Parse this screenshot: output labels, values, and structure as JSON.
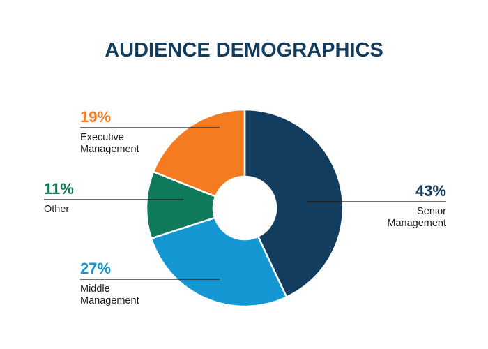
{
  "chart_data": {
    "type": "pie",
    "title": "AUDIENCE DEMOGRAPHICS",
    "donut": true,
    "slices": [
      {
        "label_lines": [
          "Senior",
          "Management"
        ],
        "value": 43,
        "display": "43%",
        "color": "#123d5e"
      },
      {
        "label_lines": [
          "Middle",
          "Management"
        ],
        "value": 27,
        "display": "27%",
        "color": "#1597d3"
      },
      {
        "label_lines": [
          "Other"
        ],
        "value": 11,
        "display": "11%",
        "color": "#0f7a5c"
      },
      {
        "label_lines": [
          "Executive",
          "Management"
        ],
        "value": 19,
        "display": "19%",
        "color": "#f47b20"
      }
    ]
  },
  "colors": {
    "title": "#123d5e",
    "leader_line": "#1a1a1a",
    "slice_border": "#ffffff"
  }
}
